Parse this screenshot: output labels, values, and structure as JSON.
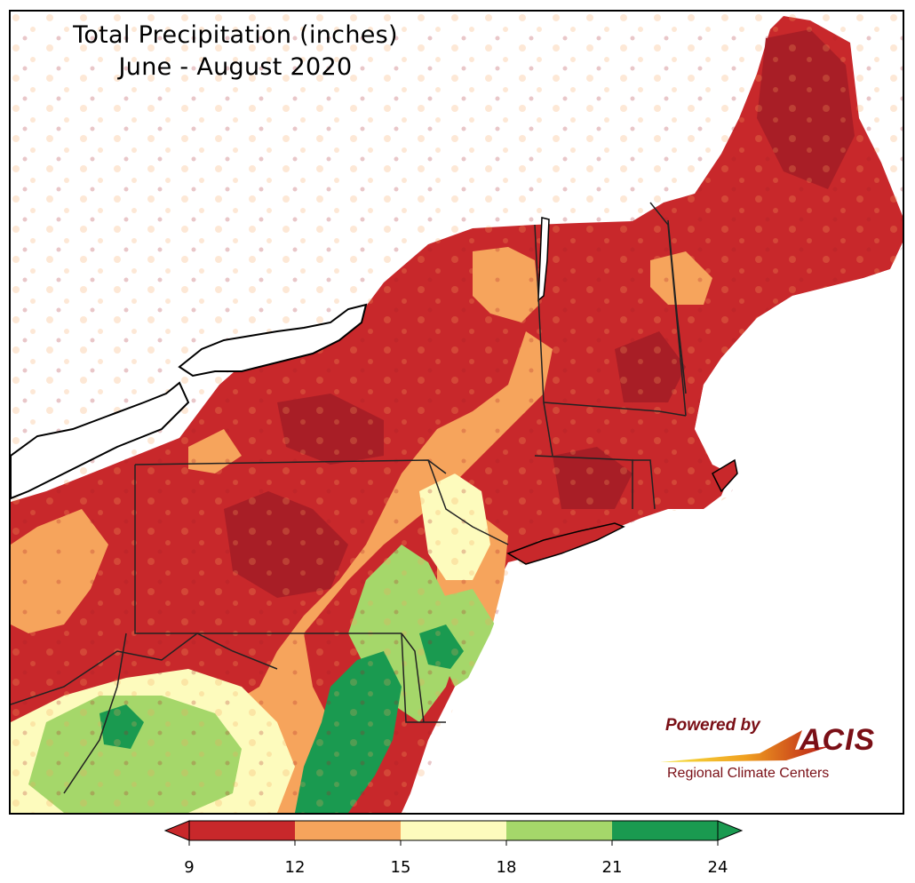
{
  "title": {
    "line1": "Total Precipitation (inches)",
    "line2": "June - August 2020"
  },
  "logo": {
    "powered_by": "Powered by",
    "acis": "ACIS",
    "tagline": "Regional Climate Centers"
  },
  "legend": {
    "ticks": [
      "9",
      "12",
      "15",
      "18",
      "21",
      "24"
    ],
    "colors": [
      "#c8282b",
      "#f6a45c",
      "#fdfbbd",
      "#a5d76a",
      "#1a9a50"
    ],
    "under_color": "#c8282b",
    "over_color": "#1a9a50"
  }
}
